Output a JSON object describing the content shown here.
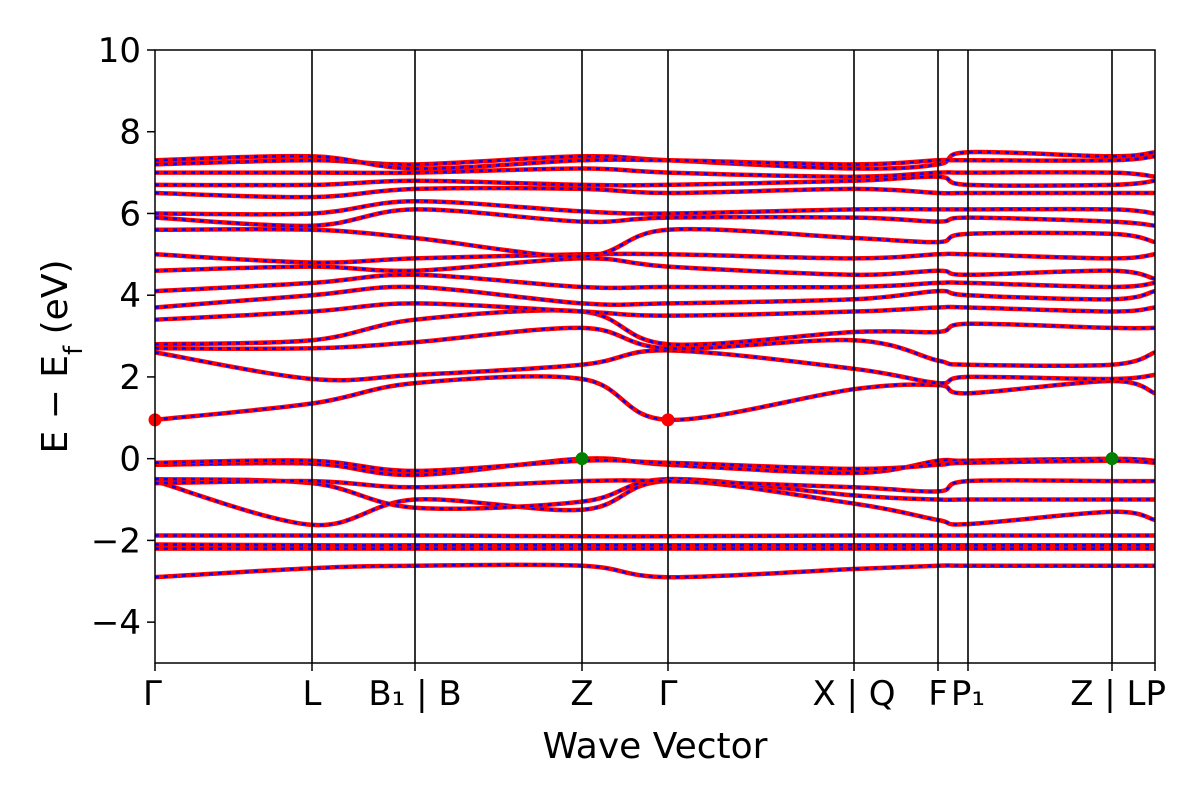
{
  "chart_data": {
    "type": "line",
    "xlabel": "Wave Vector",
    "ylabel": "E − E",
    "ylabel_sub": "f",
    "ylabel_unit": "(eV)",
    "ylim": [
      -5,
      10
    ],
    "yticks": [
      -4,
      -2,
      0,
      2,
      4,
      6,
      8,
      10
    ],
    "ytick_labels": [
      "−4",
      "−2",
      "0",
      "2",
      "4",
      "6",
      "8",
      "10"
    ],
    "xlim": [
      0,
      10
    ],
    "kpoints": [
      {
        "x": 0.0,
        "label": "Γ"
      },
      {
        "x": 1.57,
        "label": "L"
      },
      {
        "x": 2.6,
        "label": "B₁ | B"
      },
      {
        "x": 4.27,
        "label": "Z"
      },
      {
        "x": 5.13,
        "label": "Γ"
      },
      {
        "x": 6.99,
        "label": "X | Q"
      },
      {
        "x": 7.83,
        "label": "F"
      },
      {
        "x": 8.13,
        "label": "P₁"
      },
      {
        "x": 9.57,
        "label": "Z | LP"
      },
      {
        "x": 10.0,
        "label": ""
      }
    ],
    "line_colors": {
      "primary": "#ff0000",
      "overlay": "#0000ff"
    },
    "band_edge_markers": [
      {
        "x": 0.0,
        "y": 0.95,
        "kind": "CBM",
        "color": "#ff0000"
      },
      {
        "x": 5.13,
        "y": 0.95,
        "kind": "CBM",
        "color": "#ff0000"
      },
      {
        "x": 4.27,
        "y": 0.0,
        "kind": "VBM",
        "color": "#008000"
      },
      {
        "x": 9.57,
        "y": 0.0,
        "kind": "VBM",
        "color": "#008000"
      }
    ],
    "series": [
      {
        "y": [
          -2.9,
          -2.68,
          -2.62,
          -2.62,
          -2.9,
          -2.7,
          -2.62,
          -2.62,
          -2.62,
          -2.62
        ]
      },
      {
        "y": [
          -2.2,
          -2.2,
          -2.2,
          -2.2,
          -2.2,
          -2.2,
          -2.2,
          -2.2,
          -2.2,
          -2.2
        ]
      },
      {
        "y": [
          -2.1,
          -2.12,
          -2.12,
          -2.12,
          -2.12,
          -2.12,
          -2.12,
          -2.12,
          -2.12,
          -2.12
        ]
      },
      {
        "y": [
          -1.88,
          -1.88,
          -1.88,
          -1.9,
          -1.9,
          -1.88,
          -1.88,
          -1.88,
          -1.88,
          -1.88
        ]
      },
      {
        "y": [
          -0.55,
          -1.62,
          -1.0,
          -1.25,
          -0.55,
          -1.1,
          -1.5,
          -1.6,
          -1.3,
          -1.5
        ]
      },
      {
        "y": [
          -0.5,
          -0.6,
          -1.2,
          -1.05,
          -0.5,
          -0.9,
          -1.0,
          -1.0,
          -1.0,
          -1.0
        ]
      },
      {
        "y": [
          -0.6,
          -0.55,
          -0.7,
          -0.55,
          -0.55,
          -0.7,
          -0.8,
          -0.55,
          -0.55,
          -0.55
        ]
      },
      {
        "y": [
          -0.15,
          -0.12,
          -0.4,
          0.0,
          -0.15,
          -0.35,
          -0.05,
          -0.05,
          0.0,
          -0.05
        ]
      },
      {
        "y": [
          -0.1,
          -0.05,
          -0.3,
          -0.05,
          -0.1,
          -0.25,
          -0.15,
          -0.1,
          -0.05,
          -0.1
        ]
      },
      {
        "y": [
          0.95,
          1.35,
          1.85,
          1.95,
          0.95,
          1.7,
          1.8,
          1.6,
          1.9,
          1.6
        ]
      },
      {
        "y": [
          2.6,
          1.95,
          2.05,
          2.3,
          2.65,
          2.2,
          1.85,
          2.0,
          1.95,
          2.05
        ]
      },
      {
        "y": [
          2.7,
          2.7,
          2.85,
          3.2,
          2.7,
          2.9,
          2.4,
          2.3,
          2.3,
          2.6
        ]
      },
      {
        "y": [
          2.8,
          2.9,
          3.4,
          3.6,
          2.8,
          3.1,
          3.1,
          3.3,
          3.2,
          3.2
        ]
      },
      {
        "y": [
          3.4,
          3.6,
          3.8,
          3.6,
          3.5,
          3.6,
          3.7,
          3.7,
          3.6,
          3.7
        ]
      },
      {
        "y": [
          3.7,
          4.0,
          4.2,
          3.8,
          3.8,
          3.9,
          4.1,
          4.0,
          3.9,
          4.1
        ]
      },
      {
        "y": [
          4.1,
          4.3,
          4.5,
          4.2,
          4.2,
          4.2,
          4.3,
          4.3,
          4.2,
          4.3
        ]
      },
      {
        "y": [
          4.6,
          4.7,
          4.6,
          4.9,
          4.7,
          4.5,
          4.6,
          4.5,
          4.6,
          4.4
        ]
      },
      {
        "y": [
          5.0,
          4.8,
          4.9,
          5.0,
          5.0,
          4.9,
          5.0,
          5.0,
          4.9,
          5.0
        ]
      },
      {
        "y": [
          5.6,
          5.6,
          5.4,
          4.95,
          5.6,
          5.4,
          5.3,
          5.5,
          5.5,
          5.3
        ]
      },
      {
        "y": [
          5.9,
          5.7,
          6.1,
          5.8,
          5.9,
          5.9,
          5.8,
          5.9,
          5.8,
          5.7
        ]
      },
      {
        "y": [
          6.0,
          6.0,
          6.3,
          6.05,
          6.0,
          6.1,
          6.1,
          6.1,
          6.1,
          6.0
        ]
      },
      {
        "y": [
          6.5,
          6.4,
          6.6,
          6.6,
          6.5,
          6.6,
          6.5,
          6.5,
          6.5,
          6.5
        ]
      },
      {
        "y": [
          6.7,
          6.7,
          6.8,
          6.7,
          6.7,
          6.8,
          6.9,
          6.7,
          6.7,
          6.8
        ]
      },
      {
        "y": [
          7.0,
          7.0,
          7.0,
          7.1,
          7.0,
          6.9,
          7.0,
          7.0,
          7.0,
          6.9
        ]
      },
      {
        "y": [
          7.2,
          7.3,
          7.2,
          7.4,
          7.3,
          7.1,
          7.2,
          7.5,
          7.4,
          7.5
        ]
      },
      {
        "y": [
          7.3,
          7.4,
          7.1,
          7.3,
          7.3,
          7.2,
          7.3,
          7.3,
          7.3,
          7.4
        ]
      }
    ]
  }
}
